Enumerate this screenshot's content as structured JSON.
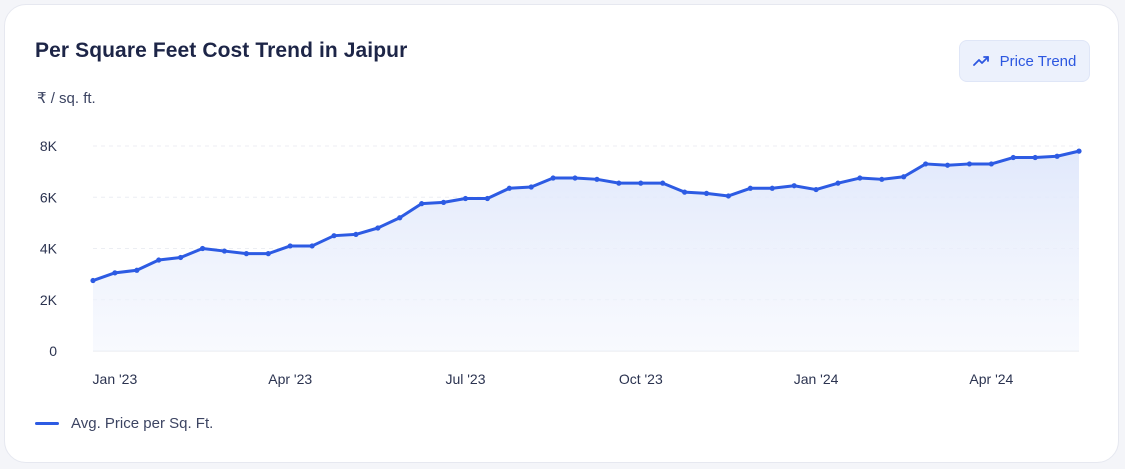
{
  "card": {
    "title": "Per Square Feet Cost Trend in Jaipur",
    "unit_label": "₹ / sq. ft.",
    "trend_button": {
      "label": "Price Trend",
      "icon": "trending-up-icon"
    }
  },
  "colors": {
    "line": "#2d5be3",
    "area_fill": "#e8eefc",
    "button_bg": "#ecf1fc",
    "button_text": "#2c57e0"
  },
  "chart_data": {
    "type": "area",
    "title": "Per Square Feet Cost Trend in Jaipur",
    "ylabel": "₹ / sq. ft.",
    "xlabel": "",
    "ylim": [
      0,
      8000
    ],
    "y_ticks": [
      0,
      2000,
      4000,
      6000,
      8000
    ],
    "y_tick_labels": [
      "0",
      "2K",
      "4K",
      "6K",
      "8K"
    ],
    "x_tick_labels": [
      "Jan '23",
      "Apr '23",
      "Jul '23",
      "Oct '23",
      "Jan '24",
      "Apr '24"
    ],
    "x_tick_positions": [
      1,
      9,
      17,
      25,
      33,
      41
    ],
    "grid": "horizontal-dashed",
    "legend_position": "bottom-left",
    "series": [
      {
        "name": "Avg. Price per Sq. Ft.",
        "values": [
          2750,
          3050,
          3150,
          3550,
          3650,
          4000,
          3900,
          3800,
          3800,
          4100,
          4100,
          4500,
          4550,
          4800,
          5200,
          5750,
          5800,
          5950,
          5950,
          6350,
          6400,
          6750,
          6750,
          6700,
          6550,
          6550,
          6550,
          6200,
          6150,
          6050,
          6350,
          6350,
          6450,
          6300,
          6550,
          6750,
          6700,
          6800,
          7300,
          7250,
          7300,
          7300,
          7550,
          7550,
          7600,
          7800
        ]
      }
    ]
  },
  "legend": {
    "label": "Avg. Price per Sq. Ft."
  }
}
